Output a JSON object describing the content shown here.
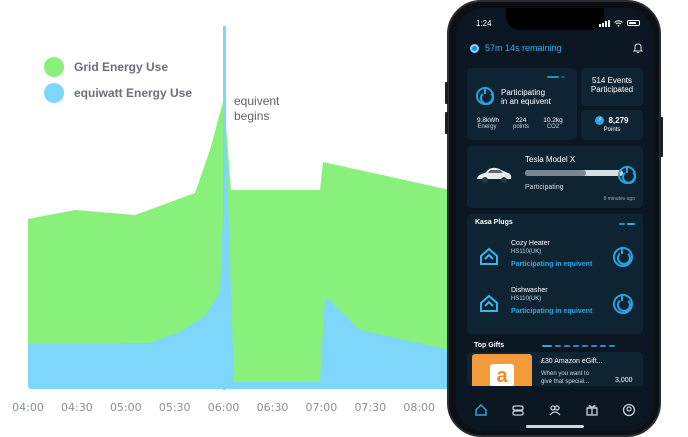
{
  "legend": {
    "grid": {
      "label": "Grid Energy Use",
      "color": "#88f07b"
    },
    "equiwatt": {
      "label": "equiwatt Energy Use",
      "color": "#7ed6fb"
    }
  },
  "annotation": {
    "line1": "equivent",
    "line2": "begins",
    "color": "#7ed6fb"
  },
  "chart_data": {
    "type": "area",
    "x_ticks": [
      "04:00",
      "04:30",
      "05:00",
      "05:30",
      "06:00",
      "06:30",
      "07:00",
      "07:30",
      "08:00"
    ],
    "series": [
      {
        "name": "Grid Energy Use",
        "color": "#88f07b"
      },
      {
        "name": "equiwatt Energy Use",
        "color": "#7ed6fb"
      }
    ]
  },
  "phone": {
    "status": {
      "time": "1:24"
    },
    "timer": "57m 14s remaining",
    "equivent_card": {
      "line1": "Participating",
      "line2": "in an equivent",
      "stats": [
        {
          "value": "9.8kWh",
          "label": "Energy"
        },
        {
          "value": "224",
          "label": "points"
        },
        {
          "value": "10.2kg",
          "label": "CO2"
        }
      ]
    },
    "events_card": {
      "line1": "514 Events",
      "line2": "Participated"
    },
    "points_card": {
      "value": "8,279",
      "label": "Points"
    },
    "tesla": {
      "name": "Tesla Model X",
      "status": "Participating",
      "time": "8 minutes ago"
    },
    "kasa": {
      "title": "Kasa Plugs",
      "devices": [
        {
          "name": "Cozy Heater",
          "model": "HS110(UK)",
          "status": "Participating in equivent"
        },
        {
          "name": "Dishwasher",
          "model": "HS110(UK)",
          "status": "Participating in equivent"
        }
      ]
    },
    "gifts": {
      "title": "Top Gifts",
      "name": "£30 Amazon eGift...",
      "desc1": "When you want to",
      "desc2": "give that special...",
      "points": "3,000"
    }
  }
}
